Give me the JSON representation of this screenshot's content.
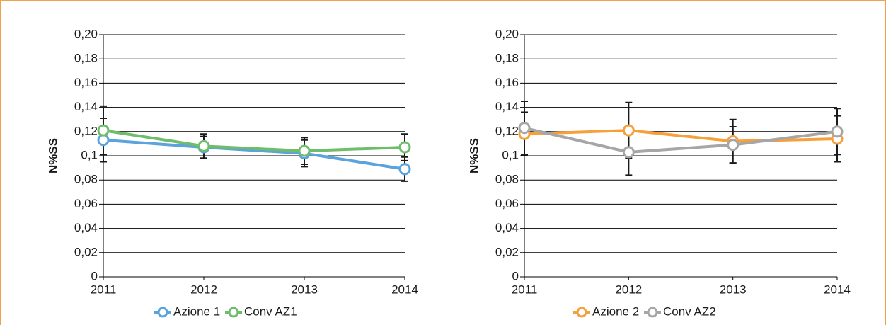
{
  "chart_data": [
    {
      "type": "line",
      "ylabel": "N%SS",
      "legend": "bottom",
      "grid": true,
      "x": [
        2011,
        2012,
        2013,
        2014
      ],
      "xlim": [
        2011,
        2014
      ],
      "xticks": [
        2011,
        2012,
        2013,
        2014
      ],
      "ylim": [
        0,
        0.2
      ],
      "yticks": [
        0,
        {
          "value": 0.02,
          "label": "0,02"
        },
        {
          "value": 0.04,
          "label": "0,04"
        },
        {
          "value": 0.06,
          "label": "0,06"
        },
        {
          "value": 0.08,
          "label": "0,08"
        },
        {
          "value": 0.1,
          "label": "0,1"
        },
        {
          "value": 0.12,
          "label": "0,12"
        },
        {
          "value": 0.14,
          "label": "0,14"
        },
        {
          "value": 0.16,
          "label": "0,16"
        },
        {
          "value": 0.18,
          "label": "0,18"
        },
        {
          "value": 0.2,
          "label": "0,20"
        }
      ],
      "series": [
        {
          "name": "Azione 1",
          "color": "#5aa3dc",
          "values": [
            0.113,
            0.107,
            0.102,
            0.089
          ],
          "errors": [
            0.018,
            0.009,
            0.011,
            0.01
          ]
        },
        {
          "name": "Conv AZ1",
          "color": "#6dbd6b",
          "values": [
            0.121,
            0.108,
            0.104,
            0.107
          ],
          "errors": [
            0.02,
            0.01,
            0.011,
            0.011
          ]
        }
      ]
    },
    {
      "type": "line",
      "ylabel": "N%SS",
      "legend": "bottom",
      "grid": true,
      "x": [
        2011,
        2012,
        2013,
        2014
      ],
      "xlim": [
        2011,
        2014
      ],
      "xticks": [
        2011,
        2012,
        2013,
        2014
      ],
      "ylim": [
        0,
        0.2
      ],
      "yticks": [
        0,
        {
          "value": 0.02,
          "label": "0,02"
        },
        {
          "value": 0.04,
          "label": "0,04"
        },
        {
          "value": 0.06,
          "label": "0,06"
        },
        {
          "value": 0.08,
          "label": "0,08"
        },
        {
          "value": 0.1,
          "label": "0,1"
        },
        {
          "value": 0.12,
          "label": "0,12"
        },
        {
          "value": 0.14,
          "label": "0,14"
        },
        {
          "value": 0.16,
          "label": "0,16"
        },
        {
          "value": 0.18,
          "label": "0,18"
        },
        {
          "value": 0.2,
          "label": "0,20"
        }
      ],
      "series": [
        {
          "name": "Azione 2",
          "color": "#f5a03a",
          "values": [
            0.118,
            0.121,
            0.112,
            0.114
          ],
          "errors": [
            0.018,
            0.023,
            0.018,
            0.019
          ]
        },
        {
          "name": "Conv AZ2",
          "color": "#a6a6a6",
          "values": [
            0.123,
            0.103,
            0.109,
            0.12
          ],
          "errors": [
            0.022,
            0.019,
            0.015,
            0.019
          ]
        }
      ]
    }
  ]
}
